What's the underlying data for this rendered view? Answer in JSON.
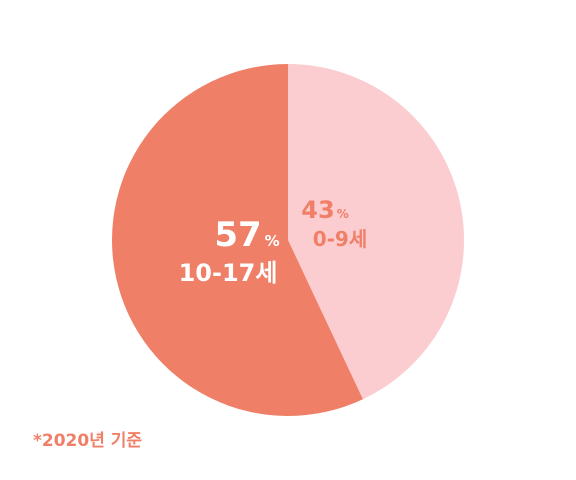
{
  "chart_data": {
    "type": "pie",
    "start_angle_deg": 0,
    "direction": "clockwise",
    "slices": [
      {
        "label": "0-9세",
        "value": 43,
        "value_text": "43",
        "unit": "%",
        "color": "#FBCDD0",
        "label_color": "#F07F68"
      },
      {
        "label": "10-17세",
        "value": 57,
        "value_text": "57",
        "unit": "%",
        "color": "#F07F68",
        "label_color": "#FFFFFF"
      }
    ]
  },
  "footnote": "*2020년 기준"
}
